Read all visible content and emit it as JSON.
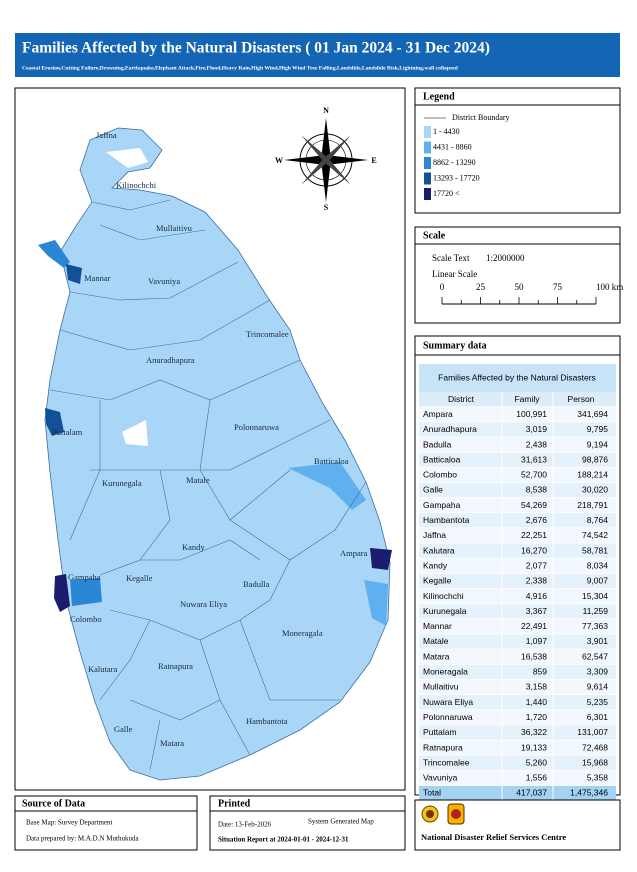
{
  "header": {
    "title": "Families Affected by the Natural Disasters ( 01 Jan 2024 - 31 Dec 2024)",
    "subtitle": "Coastal Erosion,Cutting Failure,Drowning,Earthquake,Elephant Attack,Fire,Flood,Heavy Rain,High Wind,High Wind Tree Falling,Landslide,Landslide Risk,Lightning,wall collapsed"
  },
  "map": {
    "labels": [
      "Jaffna",
      "Kilinochchi",
      "Mullaitivu",
      "Mannar",
      "Vavuniya",
      "Trincomalee",
      "Anuradhapura",
      "Puttalam",
      "Polonnaruwa",
      "Batticaloa",
      "Kurunegala",
      "Matale",
      "Kandy",
      "Ampara",
      "Gampaha",
      "Kegalle",
      "Badulla",
      "Nuwara Eliya",
      "Colombo",
      "Moneragala",
      "Kalutara",
      "Ratnapura",
      "Hambantota",
      "Galle",
      "Matara"
    ],
    "compass": [
      "N",
      "E",
      "S",
      "W"
    ]
  },
  "legend": {
    "title": "Legend",
    "boundary": "District Boundary",
    "classes": [
      {
        "label": "1 - 4430",
        "color": "#a9d6f7"
      },
      {
        "label": "4431 - 8860",
        "color": "#5fb0ee"
      },
      {
        "label": "8862 - 13290",
        "color": "#2b86d6"
      },
      {
        "label": "13293 - 17720",
        "color": "#13509a"
      },
      {
        "label": "17720 <",
        "color": "#1c1c6e"
      }
    ]
  },
  "scale": {
    "title": "Scale",
    "scale_text_label": "Scale Text",
    "scale_text": "1:2000000",
    "linear_label": "Linear Scale",
    "ticks": [
      "0",
      "25",
      "50",
      "75",
      "100 km"
    ]
  },
  "summary": {
    "title": "Summary data",
    "table": {
      "caption": "Families Affected by the Natural Disasters",
      "columns": [
        "District",
        "Family",
        "Person"
      ],
      "rows": [
        [
          "Ampara",
          "100,991",
          "341,694"
        ],
        [
          "Anuradhapura",
          "3,019",
          "9,795"
        ],
        [
          "Badulla",
          "2,438",
          "9,194"
        ],
        [
          "Batticaloa",
          "31,613",
          "98,876"
        ],
        [
          "Colombo",
          "52,700",
          "188,214"
        ],
        [
          "Galle",
          "8,538",
          "30,020"
        ],
        [
          "Gampaha",
          "54,269",
          "218,791"
        ],
        [
          "Hambantota",
          "2,676",
          "8,764"
        ],
        [
          "Jaffna",
          "22,251",
          "74,542"
        ],
        [
          "Kalutara",
          "16,270",
          "58,781"
        ],
        [
          "Kandy",
          "2,077",
          "8,034"
        ],
        [
          "Kegalle",
          "2,338",
          "9,007"
        ],
        [
          "Kilinochchi",
          "4,916",
          "15,304"
        ],
        [
          "Kurunegala",
          "3,367",
          "11,259"
        ],
        [
          "Mannar",
          "22,491",
          "77,363"
        ],
        [
          "Matale",
          "1,097",
          "3,901"
        ],
        [
          "Matara",
          "16,538",
          "62,547"
        ],
        [
          "Moneragala",
          "859",
          "3,309"
        ],
        [
          "Mullaitivu",
          "3,158",
          "9,614"
        ],
        [
          "Nuwara Eliya",
          "1,440",
          "5,235"
        ],
        [
          "Polonnaruwa",
          "1,720",
          "6,301"
        ],
        [
          "Puttalam",
          "36,322",
          "131,007"
        ],
        [
          "Ratnapura",
          "19,133",
          "72,468"
        ],
        [
          "Trincomalee",
          "5,260",
          "15,968"
        ],
        [
          "Vavuniya",
          "1,556",
          "5,358"
        ]
      ],
      "total": [
        "Total",
        "417,037",
        "1,475,346"
      ]
    }
  },
  "source": {
    "title": "Source of Data",
    "lines": [
      "Base Map: Survey Department",
      "Data prepared by: M.A.D.N Muthukuda"
    ]
  },
  "printed": {
    "title": "Printed",
    "date": "Date: 13-Feb-2026",
    "note": "System Generated Map",
    "period": "Situation Report at 2024-01-01  -  2024-12-31"
  },
  "organization": "National Disaster Relief Services Centre"
}
